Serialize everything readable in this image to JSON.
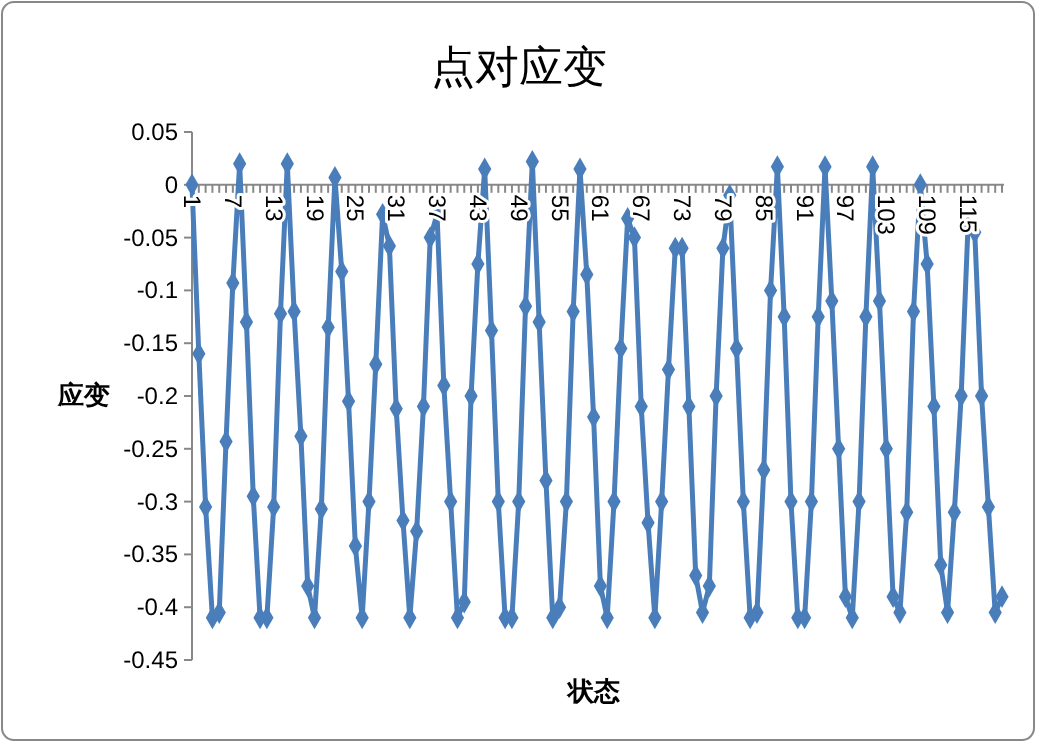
{
  "chart_data": {
    "type": "line",
    "title": "点对应变",
    "xlabel": "状态",
    "ylabel": "应变",
    "categories": [
      "1",
      null,
      null,
      null,
      null,
      null,
      "7",
      null,
      null,
      null,
      null,
      null,
      "13",
      null,
      null,
      null,
      null,
      null,
      "19",
      null,
      null,
      null,
      null,
      null,
      "25",
      null,
      null,
      null,
      null,
      null,
      "31",
      null,
      null,
      null,
      null,
      null,
      "37",
      null,
      null,
      null,
      null,
      null,
      "43",
      null,
      null,
      null,
      null,
      null,
      "49",
      null,
      null,
      null,
      null,
      null,
      "55",
      null,
      null,
      null,
      null,
      null,
      "61",
      null,
      null,
      null,
      null,
      null,
      "67",
      null,
      null,
      null,
      null,
      null,
      "73",
      null,
      null,
      null,
      null,
      null,
      "79",
      null,
      null,
      null,
      null,
      null,
      "85",
      null,
      null,
      null,
      null,
      null,
      "91",
      null,
      null,
      null,
      null,
      null,
      "97",
      null,
      null,
      null,
      null,
      null,
      "103",
      null,
      null,
      null,
      null,
      null,
      "109",
      null,
      null,
      null,
      null,
      null,
      "115",
      null,
      null,
      null,
      null,
      null
    ],
    "series": [
      {
        "color": "#4a7ebb",
        "values": [
          0,
          -0.16,
          -0.305,
          -0.41,
          -0.405,
          -0.243,
          -0.093,
          0.02,
          -0.13,
          -0.295,
          -0.41,
          -0.41,
          -0.305,
          -0.122,
          0.02,
          -0.12,
          -0.238,
          -0.38,
          -0.41,
          -0.307,
          -0.135,
          0.007,
          -0.082,
          -0.205,
          -0.342,
          -0.41,
          -0.3,
          -0.17,
          -0.028,
          -0.058,
          -0.212,
          -0.318,
          -0.41,
          -0.328,
          -0.21,
          -0.05,
          -0.028,
          -0.19,
          -0.3,
          -0.41,
          -0.395,
          -0.2,
          -0.075,
          0.015,
          -0.138,
          -0.3,
          -0.41,
          -0.41,
          -0.3,
          -0.115,
          0.022,
          -0.13,
          -0.28,
          -0.41,
          -0.4,
          -0.3,
          -0.12,
          0.015,
          -0.085,
          -0.22,
          -0.38,
          -0.41,
          -0.3,
          -0.155,
          -0.032,
          -0.05,
          -0.21,
          -0.32,
          -0.41,
          -0.3,
          -0.175,
          -0.06,
          -0.06,
          -0.21,
          -0.37,
          -0.405,
          -0.38,
          -0.2,
          -0.06,
          -0.01,
          -0.155,
          -0.3,
          -0.41,
          -0.405,
          -0.27,
          -0.1,
          0.017,
          -0.125,
          -0.3,
          -0.41,
          -0.41,
          -0.3,
          -0.125,
          0.017,
          -0.11,
          -0.25,
          -0.39,
          -0.41,
          -0.3,
          -0.125,
          0.017,
          -0.11,
          -0.25,
          -0.39,
          -0.405,
          -0.31,
          -0.12,
          0,
          -0.075,
          -0.21,
          -0.36,
          -0.405,
          -0.31,
          -0.2,
          -0.04,
          -0.045,
          -0.2,
          -0.305,
          -0.405,
          -0.39
        ]
      }
    ],
    "ylim": [
      -0.45,
      0.05
    ],
    "yticks": [
      0.05,
      0,
      -0.05,
      -0.1,
      -0.15,
      -0.2,
      -0.25,
      -0.3,
      -0.35,
      -0.4,
      -0.45
    ],
    "grid": false,
    "marker": "diamond",
    "line_style": "solid"
  }
}
